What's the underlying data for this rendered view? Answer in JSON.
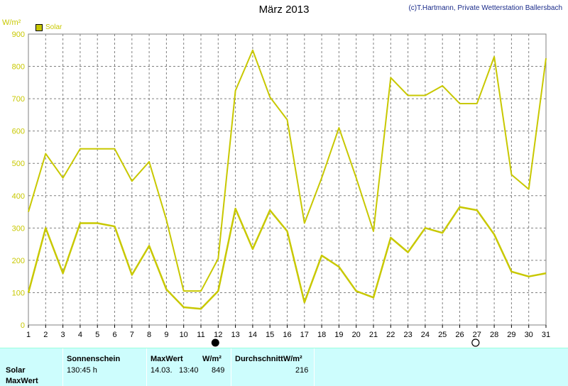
{
  "title": "März 2013",
  "copyright": "(c)T.Hartmann, Private Wetterstation Ballersbach",
  "unit": "W/m²",
  "legend_label": "Solar",
  "colors": {
    "series": "#c8c800",
    "grid": "#808080",
    "axis_label": "#c8c800",
    "stats_bg": "#cdfdfd"
  },
  "chart_data": {
    "type": "line",
    "title": "März 2013",
    "ylabel": "W/m²",
    "ylim": [
      0,
      900
    ],
    "yticks": [
      0,
      100,
      200,
      300,
      400,
      500,
      600,
      700,
      800,
      900
    ],
    "x": [
      1,
      2,
      3,
      4,
      5,
      6,
      7,
      8,
      9,
      10,
      11,
      12,
      13,
      14,
      15,
      16,
      17,
      18,
      19,
      20,
      21,
      22,
      23,
      24,
      25,
      26,
      27,
      28,
      29,
      30,
      31
    ],
    "series": [
      {
        "name": "Solar",
        "values": [
          350,
          530,
          455,
          545,
          545,
          545,
          445,
          505,
          325,
          105,
          105,
          205,
          725,
          850,
          705,
          635,
          315,
          455,
          610,
          455,
          290,
          765,
          710,
          710,
          740,
          685,
          685,
          830,
          465,
          420,
          825
        ]
      },
      {
        "values": [
          100,
          300,
          160,
          315,
          315,
          305,
          155,
          245,
          110,
          55,
          50,
          105,
          360,
          235,
          355,
          290,
          70,
          215,
          180,
          105,
          85,
          270,
          225,
          300,
          285,
          365,
          355,
          280,
          165,
          150,
          160
        ]
      }
    ],
    "markers": [
      {
        "type": "new-moon",
        "x": 12
      },
      {
        "type": "full-moon",
        "x": 27
      }
    ],
    "grid": true
  },
  "stats": {
    "row_labels": [
      "Solar",
      "MaxWert"
    ],
    "headers": {
      "sunshine": "Sonnenschein",
      "maxwert": "MaxWert",
      "unit1": "W/m²",
      "avg": "DurchschnittW/m²"
    },
    "values": {
      "sunshine": "130:45 h",
      "max_date": "14.03.",
      "max_time": "13:40",
      "max_value": "849",
      "avg_value": "216"
    }
  }
}
